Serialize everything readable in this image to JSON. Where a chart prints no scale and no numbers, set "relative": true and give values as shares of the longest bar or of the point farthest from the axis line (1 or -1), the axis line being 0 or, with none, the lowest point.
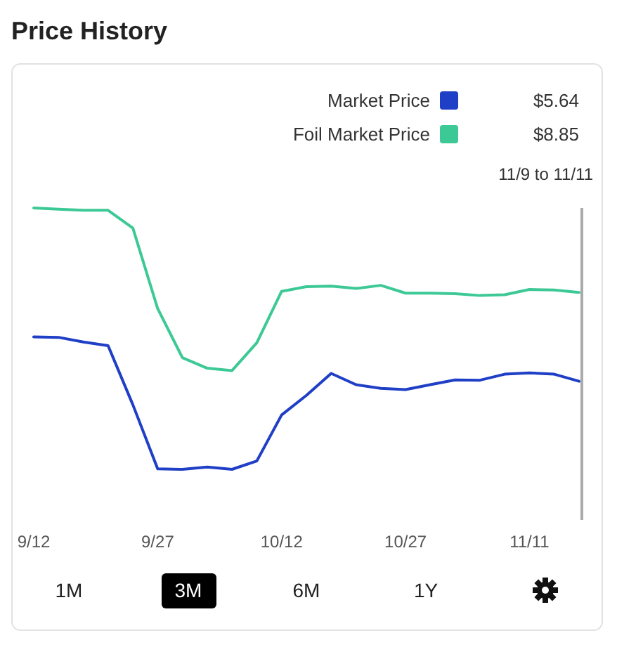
{
  "chart_data": {
    "type": "line",
    "title": "Price History",
    "relative": true,
    "categories": [
      "9/12",
      null,
      null,
      null,
      null,
      "9/27",
      null,
      null,
      null,
      null,
      "10/12",
      null,
      null,
      null,
      null,
      "10/27",
      null,
      null,
      null,
      null,
      "11/11",
      null,
      null
    ],
    "series": [
      {
        "name": "Market Price",
        "color": "#1f3fc6",
        "values": [
          0.507,
          0.505,
          0.487,
          0.473,
          0.247,
          0.002,
          0,
          0.009,
          0,
          0.032,
          0.208,
          0.283,
          0.367,
          0.324,
          0.31,
          0.305,
          0.324,
          0.342,
          0.341,
          0.364,
          0.369,
          0.364,
          0.337
        ]
      },
      {
        "name": "Foil Market Price",
        "color": "#3dc996",
        "values": [
          1,
          0.995,
          0.991,
          0.991,
          0.923,
          0.615,
          0.427,
          0.387,
          0.378,
          0.484,
          0.681,
          0.699,
          0.701,
          0.692,
          0.704,
          0.674,
          0.674,
          0.672,
          0.665,
          0.668,
          0.688,
          0.686,
          0.677
        ]
      }
    ],
    "legend": "top right",
    "marker": "none",
    "line_style": "solid",
    "annotations": [
      "$5.64",
      "$8.85",
      "11/9 to 11/11",
      "1M",
      "3M",
      "6M",
      "1Y"
    ]
  }
}
